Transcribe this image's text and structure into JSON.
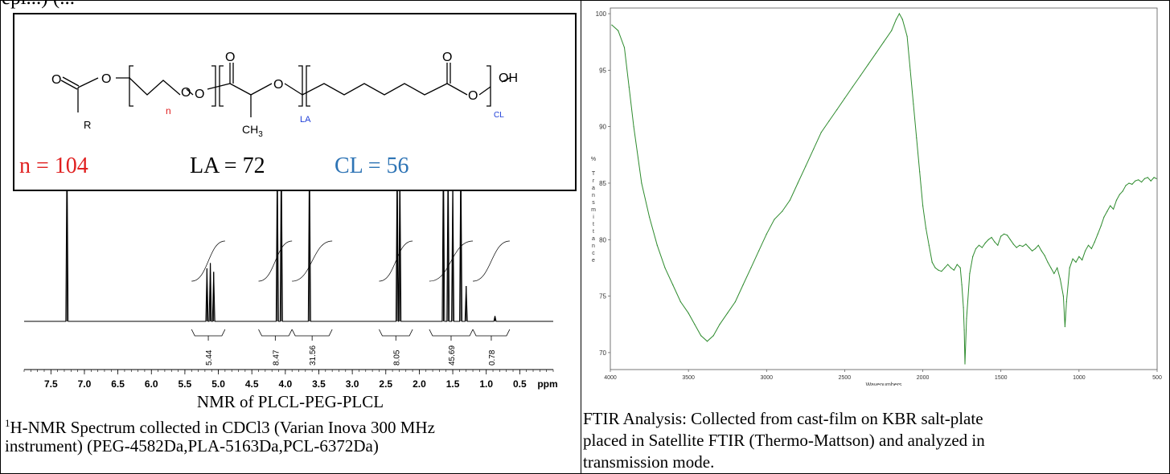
{
  "top_clip_text": "epi...) (...",
  "left_panel": {
    "structure_labels": {
      "O_end": "O",
      "R": "R",
      "O1": "O",
      "O2": "O",
      "n": "n",
      "O3": "O",
      "O4": "O",
      "CH3": "CH",
      "CH3_sub": "3",
      "LA": "LA",
      "O5": "O",
      "O6": "O",
      "OH": "OH",
      "CL": "CL"
    },
    "equations": {
      "n": "n = 104",
      "la": "LA = 72",
      "cl": "CL = 56"
    },
    "colors": {
      "n": "#e02020",
      "la": "#000000",
      "cl": "#2e74b5",
      "struct_n": "#e02020",
      "struct_sub": "#1f3fd8"
    },
    "caption_title": "NMR of PLCL-PEG-PLCL",
    "caption_line1_sup": "1",
    "caption_line1": "H-NMR Spectrum collected in CDCl3 (Varian Inova 300 MHz",
    "caption_line2": "instrument) (PEG-4582Da,PLA-5163Da,PCL-6372Da)"
  },
  "right_panel": {
    "caption_line1": "FTIR Analysis: Collected from cast-film on KBR salt-plate",
    "caption_line2": "placed in Satellite FTIR (Thermo-Mattson) and analyzed in",
    "caption_line3": "transmission mode."
  },
  "chart_data": [
    {
      "type": "line",
      "title": "",
      "xlabel": "ppm",
      "ylabel": "",
      "xlim": [
        7.9,
        0.0
      ],
      "x_reversed": true,
      "x_ticks": [
        "7.5",
        "7.0",
        "6.5",
        "6.0",
        "5.5",
        "5.0",
        "4.5",
        "4.0",
        "3.5",
        "3.0",
        "2.5",
        "2.0",
        "1.5",
        "1.0",
        "0.5"
      ],
      "x_tick_values": [
        7.5,
        7.0,
        6.5,
        6.0,
        5.5,
        5.0,
        4.5,
        4.0,
        3.5,
        3.0,
        2.5,
        2.0,
        1.5,
        1.0,
        0.5
      ],
      "peaks": [
        {
          "ppm": 7.26,
          "height": 1.0
        },
        {
          "ppm": 5.17,
          "height": 0.3
        },
        {
          "ppm": 5.12,
          "height": 0.33
        },
        {
          "ppm": 5.07,
          "height": 0.28
        },
        {
          "ppm": 4.12,
          "height": 0.95
        },
        {
          "ppm": 4.06,
          "height": 1.0
        },
        {
          "ppm": 3.64,
          "height": 1.0
        },
        {
          "ppm": 2.33,
          "height": 0.95
        },
        {
          "ppm": 2.29,
          "height": 0.9
        },
        {
          "ppm": 1.64,
          "height": 1.0
        },
        {
          "ppm": 1.57,
          "height": 0.95
        },
        {
          "ppm": 1.5,
          "height": 0.8
        },
        {
          "ppm": 1.38,
          "height": 1.0
        },
        {
          "ppm": 1.3,
          "height": 0.2
        },
        {
          "ppm": 0.87,
          "height": 0.03
        }
      ],
      "integrations": [
        {
          "label": "5.44",
          "from": 5.4,
          "to": 4.9
        },
        {
          "label": "8.47",
          "from": 4.4,
          "to": 3.9
        },
        {
          "label": "31.56",
          "from": 3.9,
          "to": 3.3
        },
        {
          "label": "8.05",
          "from": 2.6,
          "to": 2.1
        },
        {
          "label": "45.69",
          "from": 1.85,
          "to": 1.2
        },
        {
          "label": "0.78",
          "from": 1.2,
          "to": 0.65
        }
      ]
    },
    {
      "type": "line",
      "title": "",
      "xlabel": "Wavenumbers",
      "ylabel": "% Transmittance",
      "ylabel_letters": [
        "%",
        "",
        "T",
        "r",
        "a",
        "n",
        "s",
        "m",
        "i",
        "t",
        "t",
        "a",
        "n",
        "c",
        "e"
      ],
      "xlim": [
        4000,
        500
      ],
      "ylim": [
        68.5,
        100.5
      ],
      "x_ticks": [
        "4000",
        "3500",
        "3000",
        "2500",
        "2000",
        "1500",
        "1000",
        "500"
      ],
      "x_tick_values": [
        4000,
        3500,
        3000,
        2500,
        2000,
        1500,
        1000,
        500
      ],
      "y_ticks": [
        "70",
        "75",
        "80",
        "85",
        "90",
        "95",
        "100"
      ],
      "y_tick_values": [
        70,
        75,
        80,
        85,
        90,
        95,
        100
      ],
      "series_color": "#2e8b2e",
      "x": [
        3990,
        3950,
        3910,
        3880,
        3850,
        3800,
        3750,
        3700,
        3650,
        3600,
        3550,
        3500,
        3460,
        3420,
        3380,
        3340,
        3300,
        3250,
        3200,
        3150,
        3100,
        3050,
        3000,
        2950,
        2900,
        2850,
        2800,
        2750,
        2700,
        2650,
        2600,
        2550,
        2500,
        2450,
        2400,
        2350,
        2300,
        2250,
        2200,
        2170,
        2150,
        2130,
        2100,
        2080,
        2060,
        2040,
        2020,
        2000,
        1980,
        1960,
        1940,
        1920,
        1900,
        1880,
        1860,
        1840,
        1820,
        1800,
        1780,
        1760,
        1750,
        1740,
        1735,
        1730,
        1720,
        1700,
        1680,
        1660,
        1640,
        1620,
        1600,
        1580,
        1560,
        1540,
        1520,
        1500,
        1480,
        1460,
        1440,
        1420,
        1400,
        1380,
        1360,
        1340,
        1320,
        1300,
        1280,
        1260,
        1240,
        1220,
        1200,
        1180,
        1160,
        1140,
        1120,
        1100,
        1090,
        1080,
        1060,
        1040,
        1020,
        1000,
        980,
        960,
        940,
        920,
        900,
        880,
        860,
        840,
        820,
        800,
        780,
        760,
        740,
        720,
        700,
        680,
        660,
        640,
        620,
        600,
        580,
        560,
        540,
        520,
        505
      ],
      "y": [
        99,
        98.5,
        97,
        93.5,
        90,
        85,
        82,
        79.5,
        77.5,
        76,
        74.5,
        73.5,
        72.5,
        71.5,
        71,
        71.5,
        72.5,
        73.5,
        74.5,
        76,
        77.5,
        79,
        80.5,
        81.8,
        82.5,
        83.5,
        85,
        86.5,
        88,
        89.5,
        90.5,
        91.5,
        92.5,
        93.5,
        94.5,
        95.5,
        96.5,
        97.5,
        98.5,
        99.5,
        100,
        99.5,
        98,
        95,
        92,
        89,
        86,
        83,
        81,
        79.5,
        78,
        77.5,
        77.3,
        77.2,
        77.5,
        77.8,
        77.5,
        77.3,
        77.8,
        77.5,
        76,
        74,
        72,
        69,
        73,
        77,
        78.5,
        79.2,
        79.5,
        79.3,
        79.7,
        80,
        80.2,
        79.8,
        79.5,
        80.3,
        80.5,
        80.4,
        80,
        79.6,
        79.3,
        79.5,
        79.4,
        79.6,
        79.3,
        79.0,
        79.2,
        79.5,
        79.0,
        78.6,
        78,
        77.5,
        77,
        77.5,
        76.5,
        75,
        72.3,
        74.5,
        77.5,
        78.3,
        78.0,
        78.5,
        78.2,
        79.0,
        79.5,
        79.2,
        79.8,
        80.5,
        81.2,
        82.0,
        82.5,
        83.0,
        82.7,
        83.5,
        84.0,
        84.3,
        84.8,
        85.0,
        84.9,
        85.2,
        85.3,
        85.1,
        85.4,
        85.5,
        85.2,
        85.5,
        85.4
      ]
    }
  ]
}
